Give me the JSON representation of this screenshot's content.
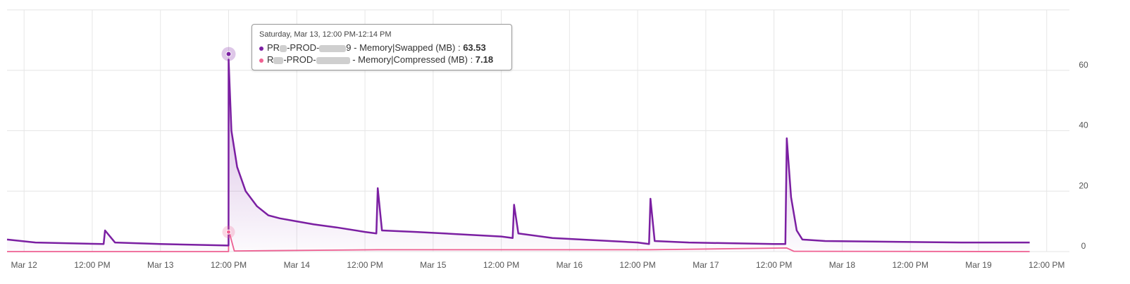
{
  "chart_data": {
    "type": "area",
    "x_tick_labels": [
      "Mar 12",
      "12:00 PM",
      "Mar 13",
      "12:00 PM",
      "Mar 14",
      "12:00 PM",
      "Mar 15",
      "12:00 PM",
      "Mar 16",
      "12:00 PM",
      "Mar 17",
      "12:00 PM",
      "Mar 18",
      "12:00 PM",
      "Mar 19",
      "12:00 PM"
    ],
    "y_ticks": [
      0,
      20,
      40,
      60
    ],
    "ylim": [
      0,
      80
    ],
    "xlim": [
      "2021-03-11T21:00",
      "2021-03-19T16:00"
    ],
    "grid": true,
    "series": [
      {
        "name": "PROD - Memory|Swapped (MB)",
        "color": "#7b1fa2",
        "x": [
          "2021-03-11T21:00",
          "2021-03-12T02:00",
          "2021-03-12T14:00",
          "2021-03-12T14:15",
          "2021-03-12T16:00",
          "2021-03-13T00:00",
          "2021-03-13T11:59",
          "2021-03-13T12:00",
          "2021-03-13T12:30",
          "2021-03-13T13:30",
          "2021-03-13T15:00",
          "2021-03-13T17:00",
          "2021-03-13T19:00",
          "2021-03-13T21:00",
          "2021-03-14T00:00",
          "2021-03-14T03:00",
          "2021-03-14T07:00",
          "2021-03-14T12:00",
          "2021-03-14T14:00",
          "2021-03-14T14:15",
          "2021-03-14T15:00",
          "2021-03-14T21:00",
          "2021-03-15T12:00",
          "2021-03-15T14:00",
          "2021-03-15T14:15",
          "2021-03-15T15:00",
          "2021-03-15T21:00",
          "2021-03-16T12:00",
          "2021-03-16T14:00",
          "2021-03-16T14:15",
          "2021-03-16T15:00",
          "2021-03-16T21:00",
          "2021-03-17T12:00",
          "2021-03-17T14:00",
          "2021-03-17T14:15",
          "2021-03-17T15:00",
          "2021-03-17T16:00",
          "2021-03-17T17:00",
          "2021-03-17T21:00",
          "2021-03-18T21:00",
          "2021-03-19T09:00"
        ],
        "values": [
          4,
          3,
          2.5,
          7,
          3,
          2.5,
          2,
          63.53,
          40,
          28,
          20,
          15,
          12,
          11,
          10,
          9,
          8,
          6.5,
          6,
          21,
          7,
          6.5,
          5,
          4.5,
          15.5,
          6,
          4.5,
          3,
          2.5,
          17.5,
          3.5,
          3,
          2.5,
          2.5,
          37.5,
          18,
          7,
          4,
          3.5,
          3,
          3
        ]
      },
      {
        "name": "PROD - Memory|Compressed (MB)",
        "color": "#f06292",
        "x": [
          "2021-03-11T21:00",
          "2021-03-13T11:59",
          "2021-03-13T12:00",
          "2021-03-13T13:00",
          "2021-03-14T14:15",
          "2021-03-15T14:15",
          "2021-03-16T14:15",
          "2021-03-17T14:15",
          "2021-03-17T15:30",
          "2021-03-19T09:00"
        ],
        "values": [
          0,
          0,
          7.18,
          0.2,
          0.6,
          0.6,
          0.6,
          1.2,
          0.1,
          0
        ]
      }
    ]
  },
  "tooltip": {
    "title": "Saturday, Mar 13, 12:00 PM-12:14 PM",
    "rows": [
      {
        "prefix": "PR",
        "mid": "-PROD-",
        "suffix": "9 - Memory|Swapped (MB) : ",
        "value": "63.53",
        "color": "#7b1fa2"
      },
      {
        "prefix": "R",
        "mid": "-PROD-",
        "suffix": " - Memory|Compressed (MB) : ",
        "value": "7.18",
        "color": "#f06292"
      }
    ]
  }
}
